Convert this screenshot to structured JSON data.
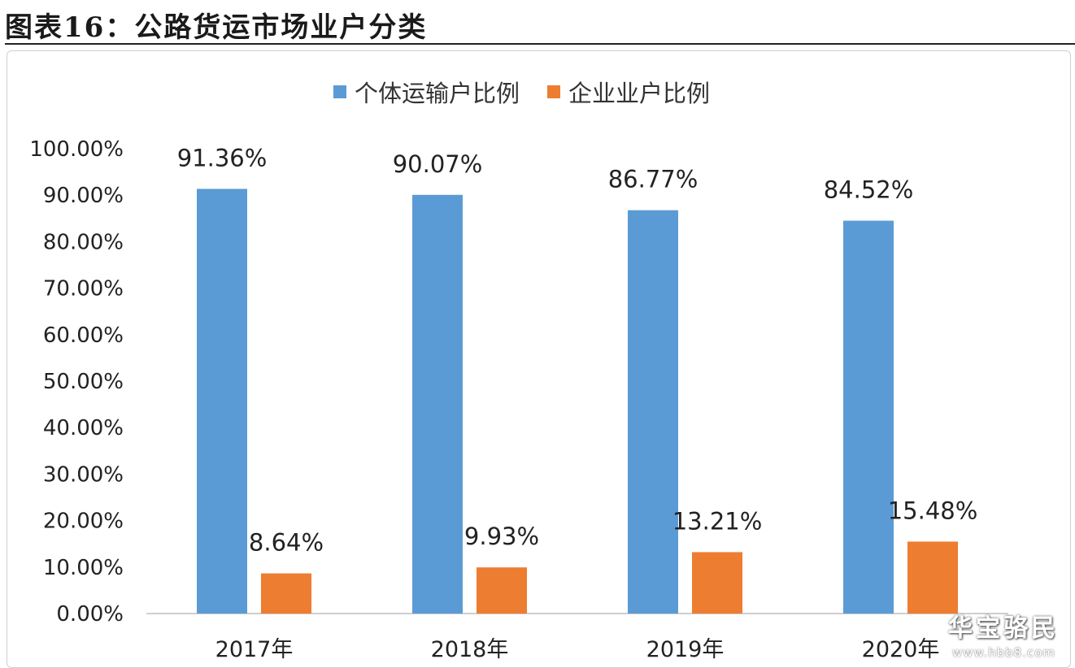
{
  "page_title": "图表16：公路货运市场业户分类",
  "watermark": {
    "text": "华宝骆民",
    "url": "www.hbb8.com"
  },
  "colors": {
    "series_1": "#5b9bd5",
    "series_2": "#ed7d31"
  },
  "chart_data": {
    "type": "bar",
    "categories": [
      "2017年",
      "2018年",
      "2019年",
      "2020年"
    ],
    "series": [
      {
        "name": "个体运输户比例",
        "values": [
          91.36,
          90.07,
          86.77,
          84.52
        ],
        "labels": [
          "91.36%",
          "90.07%",
          "86.77%",
          "84.52%"
        ]
      },
      {
        "name": "企业业户比例",
        "values": [
          8.64,
          9.93,
          13.21,
          15.48
        ],
        "labels": [
          "8.64%",
          "9.93%",
          "13.21%",
          "15.48%"
        ]
      }
    ],
    "ylim": [
      0,
      100
    ],
    "yticks": [
      "0.00%",
      "10.00%",
      "20.00%",
      "30.00%",
      "40.00%",
      "50.00%",
      "60.00%",
      "70.00%",
      "80.00%",
      "90.00%",
      "100.00%"
    ],
    "grid": false,
    "legend_position": "top"
  }
}
